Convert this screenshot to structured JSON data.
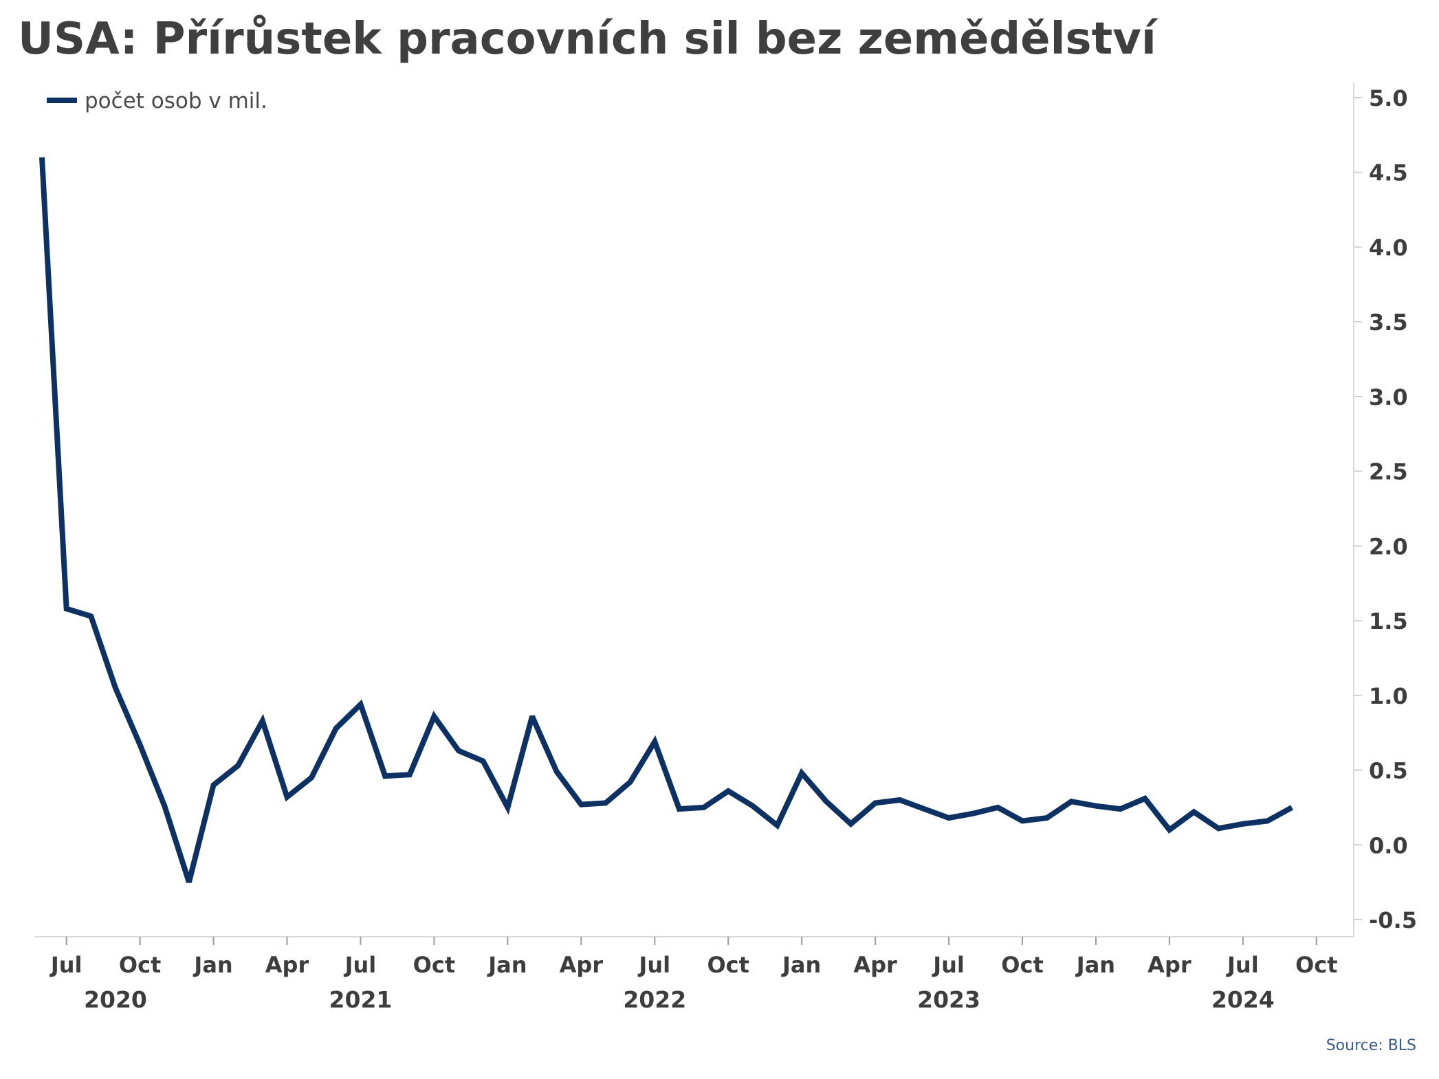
{
  "chart_data": {
    "type": "line",
    "title": "USA: Přírůstek pracovních sil bez zemědělství",
    "source": "Source: BLS",
    "legend": {
      "position": "top-left"
    },
    "series": [
      {
        "name": "počet osob v mil.",
        "color": "#0d3163",
        "x": [
          "2020-06",
          "2020-07",
          "2020-08",
          "2020-09",
          "2020-10",
          "2020-11",
          "2020-12",
          "2021-01",
          "2021-02",
          "2021-03",
          "2021-04",
          "2021-05",
          "2021-06",
          "2021-07",
          "2021-08",
          "2021-09",
          "2021-10",
          "2021-11",
          "2021-12",
          "2022-01",
          "2022-02",
          "2022-03",
          "2022-04",
          "2022-05",
          "2022-06",
          "2022-07",
          "2022-08",
          "2022-09",
          "2022-10",
          "2022-11",
          "2022-12",
          "2023-01",
          "2023-02",
          "2023-03",
          "2023-04",
          "2023-05",
          "2023-06",
          "2023-07",
          "2023-08",
          "2023-09",
          "2023-10",
          "2023-11",
          "2023-12",
          "2024-01",
          "2024-02",
          "2024-03",
          "2024-04",
          "2024-05",
          "2024-06",
          "2024-07",
          "2024-08",
          "2024-09"
        ],
        "values": [
          4.6,
          1.58,
          1.53,
          1.05,
          0.67,
          0.26,
          -0.25,
          0.4,
          0.53,
          0.83,
          0.32,
          0.45,
          0.78,
          0.94,
          0.46,
          0.47,
          0.86,
          0.63,
          0.56,
          0.25,
          0.86,
          0.49,
          0.27,
          0.28,
          0.42,
          0.69,
          0.24,
          0.25,
          0.36,
          0.26,
          0.13,
          0.48,
          0.29,
          0.14,
          0.28,
          0.3,
          0.24,
          0.18,
          0.21,
          0.25,
          0.16,
          0.18,
          0.29,
          0.26,
          0.24,
          0.31,
          0.1,
          0.22,
          0.11,
          0.14,
          0.16,
          0.25
        ]
      }
    ],
    "y_axis": {
      "position": "right",
      "range": [
        -0.6,
        5.1
      ],
      "ticks": [
        5.0,
        4.5,
        4.0,
        3.5,
        3.0,
        2.5,
        2.0,
        1.5,
        1.0,
        0.5,
        0.0,
        -0.5
      ],
      "tick_labels": [
        "5.0",
        "4.5",
        "4.0",
        "3.5",
        "3.0",
        "2.5",
        "2.0",
        "1.5",
        "1.0",
        "0.5",
        "0.0",
        "-0.5"
      ]
    },
    "x_axis": {
      "range": [
        "2020-06",
        "2024-10"
      ],
      "ticks": [
        {
          "date": "2020-07",
          "label": "Jul"
        },
        {
          "date": "2020-10",
          "label": "Oct"
        },
        {
          "date": "2021-01",
          "label": "Jan"
        },
        {
          "date": "2021-04",
          "label": "Apr"
        },
        {
          "date": "2021-07",
          "label": "Jul"
        },
        {
          "date": "2021-10",
          "label": "Oct"
        },
        {
          "date": "2022-01",
          "label": "Jan"
        },
        {
          "date": "2022-04",
          "label": "Apr"
        },
        {
          "date": "2022-07",
          "label": "Jul"
        },
        {
          "date": "2022-10",
          "label": "Oct"
        },
        {
          "date": "2023-01",
          "label": "Jan"
        },
        {
          "date": "2023-04",
          "label": "Apr"
        },
        {
          "date": "2023-07",
          "label": "Jul"
        },
        {
          "date": "2023-10",
          "label": "Oct"
        },
        {
          "date": "2024-01",
          "label": "Jan"
        },
        {
          "date": "2024-04",
          "label": "Apr"
        },
        {
          "date": "2024-07",
          "label": "Jul"
        },
        {
          "date": "2024-10",
          "label": "Oct"
        }
      ],
      "year_labels": [
        {
          "date": "2020-09",
          "label": "2020"
        },
        {
          "date": "2021-07",
          "label": "2021"
        },
        {
          "date": "2022-07",
          "label": "2022"
        },
        {
          "date": "2023-07",
          "label": "2023"
        },
        {
          "date": "2024-07",
          "label": "2024"
        }
      ]
    },
    "grid": false
  }
}
